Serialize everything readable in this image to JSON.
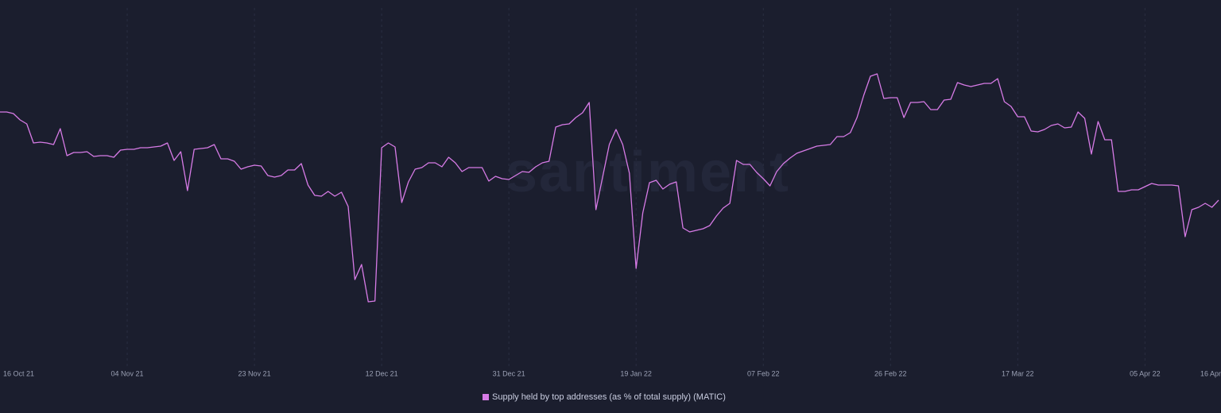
{
  "chart_data": {
    "type": "line",
    "watermark": "santiment",
    "categories": [
      "16 Oct 21",
      null,
      null,
      null,
      null,
      null,
      null,
      null,
      null,
      null,
      null,
      null,
      null,
      null,
      null,
      null,
      null,
      null,
      null,
      "04 Nov 21",
      null,
      null,
      null,
      null,
      null,
      null,
      null,
      null,
      null,
      null,
      null,
      null,
      null,
      null,
      null,
      null,
      null,
      null,
      "23 Nov 21",
      null,
      null,
      null,
      null,
      null,
      null,
      null,
      null,
      null,
      null,
      null,
      null,
      null,
      null,
      null,
      null,
      null,
      null,
      "12 Dec 21",
      null,
      null,
      null,
      null,
      null,
      null,
      null,
      null,
      null,
      null,
      null,
      null,
      null,
      null,
      null,
      null,
      null,
      null,
      "31 Dec 21",
      null,
      null,
      null,
      null,
      null,
      null,
      null,
      null,
      null,
      null,
      null,
      null,
      null,
      null,
      null,
      null,
      null,
      null,
      "19 Jan 22",
      null,
      null,
      null,
      null,
      null,
      null,
      null,
      null,
      null,
      null,
      null,
      null,
      null,
      null,
      null,
      null,
      null,
      null,
      "07 Feb 22",
      null,
      null,
      null,
      null,
      null,
      null,
      null,
      null,
      null,
      null,
      null,
      null,
      null,
      null,
      null,
      null,
      null,
      null,
      "26 Feb 22",
      null,
      null,
      null,
      null,
      null,
      null,
      null,
      null,
      null,
      null,
      null,
      null,
      null,
      null,
      null,
      null,
      null,
      null,
      "17 Mar 22",
      null,
      null,
      null,
      null,
      null,
      null,
      null,
      null,
      null,
      null,
      null,
      null,
      null,
      null,
      null,
      null,
      null,
      null,
      "05 Apr 22",
      null,
      null,
      null,
      null,
      null,
      null,
      null,
      null,
      null,
      null,
      "16 Apr"
    ],
    "series": [
      {
        "name": "Supply held by top addresses (as % of total supply) (MATIC)",
        "color": "#d77be6",
        "values": [
          324,
          324,
          322,
          314,
          309,
          285,
          286,
          285,
          283,
          303,
          269,
          273,
          273,
          274,
          268,
          269,
          269,
          267,
          276,
          277,
          277,
          279,
          279,
          280,
          281,
          285,
          263,
          274,
          225,
          277,
          278,
          279,
          283,
          265,
          265,
          262,
          252,
          255,
          257,
          256,
          244,
          242,
          244,
          251,
          251,
          259,
          232,
          219,
          218,
          224,
          218,
          223,
          205,
          113,
          132,
          85,
          86,
          279,
          285,
          280,
          210,
          236,
          252,
          254,
          260,
          260,
          255,
          267,
          260,
          249,
          254,
          254,
          254,
          237,
          243,
          240,
          239,
          244,
          249,
          248,
          255,
          260,
          262,
          305,
          308,
          309,
          317,
          323,
          336,
          201,
          242,
          283,
          302,
          283,
          247,
          127,
          197,
          235,
          238,
          227,
          233,
          236,
          178,
          173,
          175,
          177,
          181,
          193,
          203,
          209,
          263,
          258,
          258,
          248,
          240,
          231,
          249,
          259,
          266,
          272,
          275,
          278,
          281,
          282,
          283,
          293,
          293,
          298,
          317,
          345,
          369,
          372,
          341,
          342,
          342,
          317,
          336,
          336,
          337,
          327,
          327,
          339,
          340,
          361,
          358,
          356,
          358,
          360,
          360,
          366,
          337,
          331,
          318,
          318,
          300,
          299,
          302,
          307,
          309,
          304,
          305,
          324,
          316,
          271,
          312,
          289,
          289,
          224,
          224,
          226,
          226,
          230,
          234,
          232,
          232,
          232,
          231,
          167,
          201,
          204,
          209,
          204,
          213
        ]
      }
    ],
    "ylim": [
      0,
      465
    ],
    "legend": "bottom"
  }
}
